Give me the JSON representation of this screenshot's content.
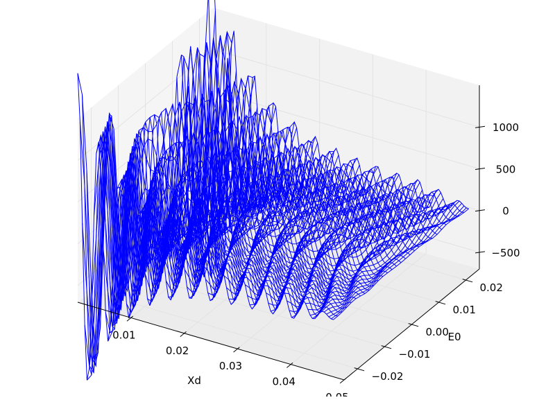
{
  "chart_data": {
    "type": "3d-wireframe",
    "xlabel": "Xd",
    "ylabel": "E0",
    "zlabel": "",
    "xlim": [
      0.0,
      0.05
    ],
    "ylim": [
      -0.025,
      0.025
    ],
    "zlim": [
      -700,
      1500
    ],
    "x_ticks": [
      0.01,
      0.02,
      0.03,
      0.04,
      0.05
    ],
    "x_tick_labels": [
      "0.01",
      "0.02",
      "0.03",
      "0.04",
      "0.05"
    ],
    "y_ticks": [
      -0.02,
      -0.01,
      0.0,
      0.01,
      0.02
    ],
    "y_tick_labels": [
      "−0.02",
      "−0.01",
      "0.00",
      "0.01",
      "0.02"
    ],
    "z_ticks": [
      -500,
      0,
      500,
      1000
    ],
    "z_tick_labels": [
      "−500",
      "0",
      "500",
      "1000"
    ],
    "surface": {
      "description_of_function": "damped oscillation in Xd, ridges curved along E0",
      "x_range": [
        0.0,
        0.048
      ],
      "y_range": [
        -0.025,
        0.025
      ],
      "peak_values": [
        1180,
        1400
      ],
      "peak_x": [
        0.002,
        0.007
      ],
      "peak_y": [
        0.012,
        0.017
      ]
    },
    "grid": true,
    "colors": {
      "wire": "#0000ff",
      "pane": "#f2f2f2",
      "grid": "#e3e3e3",
      "axis": "#000000"
    }
  }
}
